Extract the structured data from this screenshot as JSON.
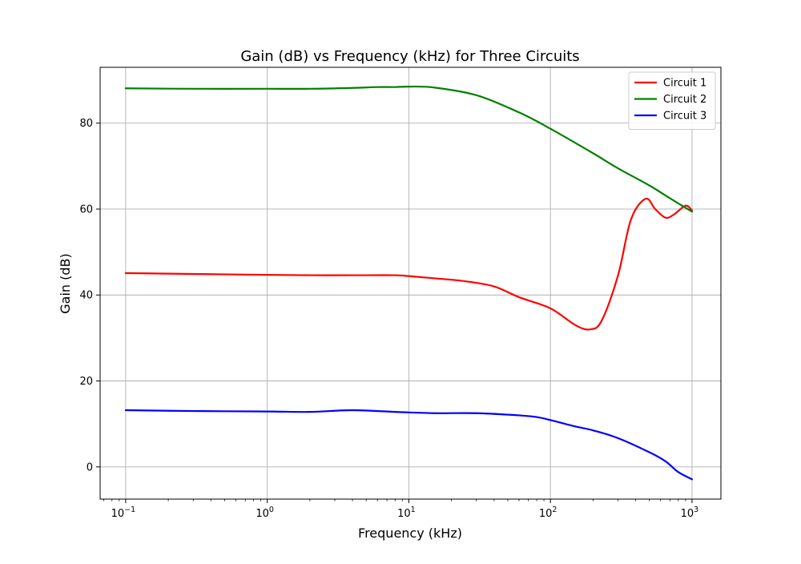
{
  "chart_data": {
    "type": "line",
    "title": "Gain (dB) vs Frequency (kHz) for Three Circuits",
    "xlabel": "Frequency (kHz)",
    "ylabel": "Gain (dB)",
    "xscale": "log",
    "xlim": [
      0.066,
      1600
    ],
    "ylim": [
      -7.5,
      93
    ],
    "xticks": [
      {
        "value": 0.1,
        "base": "10",
        "exp": "−1"
      },
      {
        "value": 1,
        "base": "10",
        "exp": "0"
      },
      {
        "value": 10,
        "base": "10",
        "exp": "1"
      },
      {
        "value": 100,
        "base": "10",
        "exp": "2"
      },
      {
        "value": 1000,
        "base": "10",
        "exp": "3"
      }
    ],
    "yticks": [
      0,
      20,
      40,
      60,
      80
    ],
    "grid": true,
    "legend_position": "top-right",
    "series": [
      {
        "name": "Circuit 1",
        "color": "#ff0000",
        "x": [
          0.1,
          0.3,
          1,
          2,
          4,
          8,
          10,
          15,
          25,
          40,
          60,
          100,
          150,
          190,
          230,
          300,
          370,
          470,
          550,
          650,
          750,
          900,
          1000
        ],
        "y": [
          45.1,
          44.9,
          44.7,
          44.6,
          44.6,
          44.6,
          44.4,
          43.9,
          43.2,
          42.0,
          39.5,
          36.9,
          33.0,
          32.0,
          34.0,
          44.5,
          57.5,
          62.4,
          60.0,
          58.0,
          58.8,
          60.8,
          59.7
        ]
      },
      {
        "name": "Circuit 2",
        "color": "#008000",
        "x": [
          0.1,
          0.3,
          1,
          2,
          4,
          6,
          8,
          10,
          15,
          30,
          60,
          100,
          200,
          300,
          500,
          700,
          1000
        ],
        "y": [
          88.1,
          88.0,
          88.0,
          88.0,
          88.2,
          88.4,
          88.4,
          88.5,
          88.3,
          86.5,
          82.5,
          78.7,
          73.0,
          69.5,
          65.5,
          62.5,
          59.4
        ]
      },
      {
        "name": "Circuit 3",
        "color": "#0000ff",
        "x": [
          0.1,
          0.3,
          1,
          2,
          4,
          8,
          15,
          30,
          60,
          80,
          100,
          150,
          200,
          300,
          500,
          650,
          800,
          1000
        ],
        "y": [
          13.2,
          13.0,
          12.9,
          12.8,
          13.2,
          12.8,
          12.5,
          12.5,
          12.0,
          11.6,
          10.9,
          9.4,
          8.5,
          6.7,
          3.4,
          1.3,
          -1.2,
          -2.9
        ]
      }
    ]
  }
}
